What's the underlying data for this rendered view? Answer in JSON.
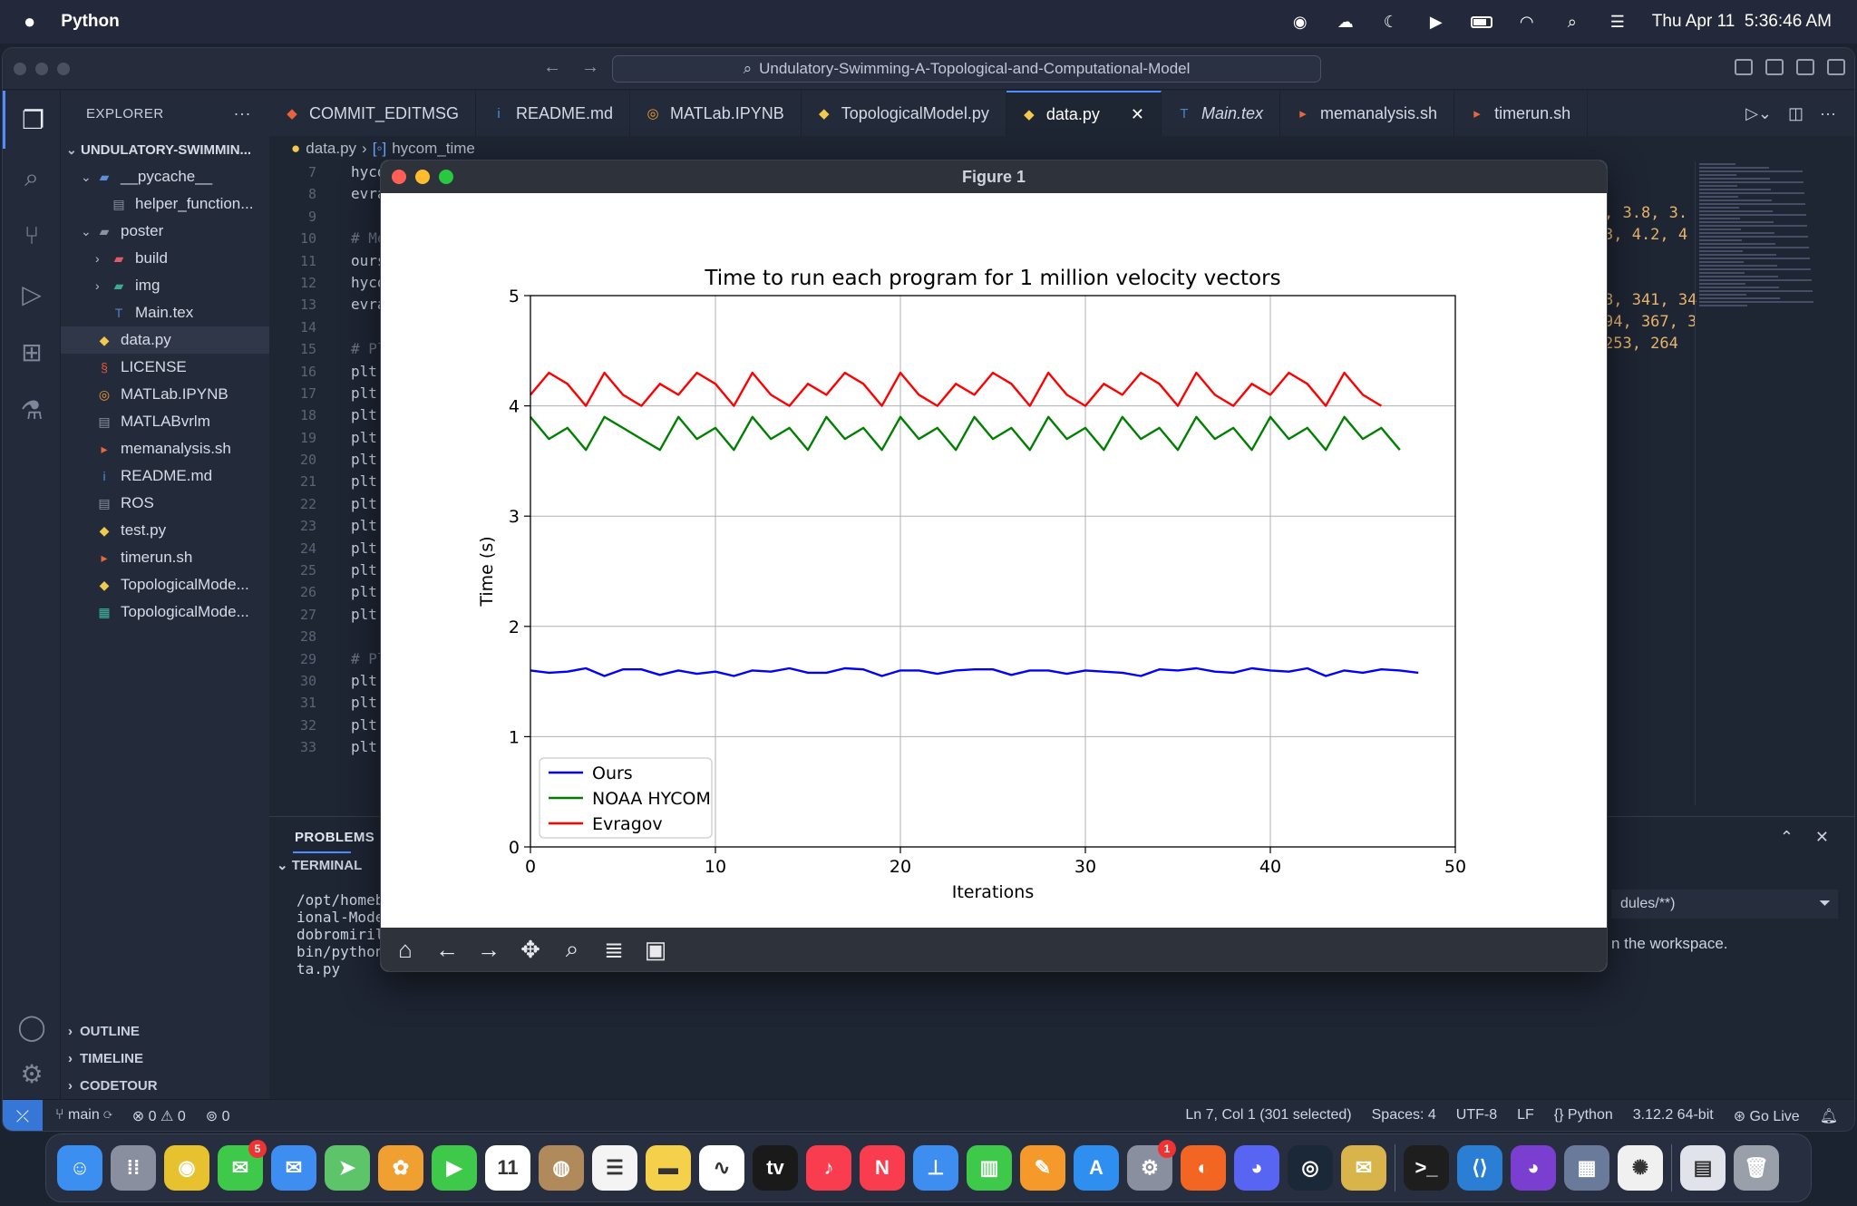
{
  "menubar": {
    "app_name": "Python",
    "datetime": "Thu Apr 11  5:36:46 AM"
  },
  "window": {
    "command_center": "Undulatory-Swimming-A-Topological-and-Computational-Model"
  },
  "explorer": {
    "title": "EXPLORER",
    "more": "···",
    "root": "UNDULATORY-SWIMMIN...",
    "items": [
      {
        "label": "__pycache__",
        "indent": 1,
        "chevron": "v",
        "icon": "folder-icon",
        "color": "#5a8fd8"
      },
      {
        "label": "helper_function...",
        "indent": 2,
        "chevron": "",
        "icon": "file-icon",
        "color": "#8a93a5"
      },
      {
        "label": "poster",
        "indent": 1,
        "chevron": "v",
        "icon": "folder-icon",
        "color": "#8a93a5"
      },
      {
        "label": "build",
        "indent": 2,
        "chevron": ">",
        "icon": "folder-icon",
        "color": "#e05a6a"
      },
      {
        "label": "img",
        "indent": 2,
        "chevron": ">",
        "icon": "folder-icon",
        "color": "#3fa98c"
      },
      {
        "label": "Main.tex",
        "indent": 2,
        "chevron": "",
        "icon": "tex-icon",
        "color": "#4f82c9"
      },
      {
        "label": "data.py",
        "indent": 1,
        "chevron": "",
        "icon": "python-icon",
        "color": "#f2c94c",
        "selected": true
      },
      {
        "label": "LICENSE",
        "indent": 1,
        "chevron": "",
        "icon": "license-icon",
        "color": "#e05a3a"
      },
      {
        "label": "MATLab.IPYNB",
        "indent": 1,
        "chevron": "",
        "icon": "jupyter-icon",
        "color": "#f29c38"
      },
      {
        "label": "MATLABvrlm",
        "indent": 1,
        "chevron": "",
        "icon": "file-icon",
        "color": "#8a93a5"
      },
      {
        "label": "memanalysis.sh",
        "indent": 1,
        "chevron": "",
        "icon": "shell-icon",
        "color": "#e56a3a"
      },
      {
        "label": "README.md",
        "indent": 1,
        "chevron": "",
        "icon": "info-icon",
        "color": "#4a8fe0"
      },
      {
        "label": "ROS",
        "indent": 1,
        "chevron": "",
        "icon": "file-icon",
        "color": "#8a93a5"
      },
      {
        "label": "test.py",
        "indent": 1,
        "chevron": "",
        "icon": "python-icon",
        "color": "#f2c94c"
      },
      {
        "label": "timerun.sh",
        "indent": 1,
        "chevron": "",
        "icon": "shell-icon",
        "color": "#e56a3a"
      },
      {
        "label": "TopologicalMode...",
        "indent": 1,
        "chevron": "",
        "icon": "python-icon",
        "color": "#f2c94c"
      },
      {
        "label": "TopologicalMode...",
        "indent": 1,
        "chevron": "",
        "icon": "notebook-icon",
        "color": "#3fb8a0"
      }
    ],
    "bottom": [
      "OUTLINE",
      "TIMELINE",
      "CODETOUR"
    ]
  },
  "tabs": [
    {
      "label": "COMMIT_EDITMSG",
      "icon": "git-icon",
      "color": "#e9643a"
    },
    {
      "label": "README.md",
      "icon": "info-icon",
      "color": "#4a8fe0"
    },
    {
      "label": "MATLab.IPYNB",
      "icon": "jupyter-icon",
      "color": "#f29c38"
    },
    {
      "label": "TopologicalModel.py",
      "icon": "python-icon",
      "color": "#f2c94c"
    },
    {
      "label": "data.py",
      "icon": "python-icon",
      "color": "#f2c94c",
      "active": true,
      "close": "✕"
    },
    {
      "label": "Main.tex",
      "icon": "tex-icon",
      "color": "#4f82c9",
      "italic": true
    },
    {
      "label": "memanalysis.sh",
      "icon": "shell-icon",
      "color": "#e56a3a"
    },
    {
      "label": "timerun.sh",
      "icon": "shell-icon",
      "color": "#e56a3a"
    }
  ],
  "breadcrumb": {
    "file": "data.py",
    "symbol": "hycom_time"
  },
  "editor": {
    "lines": [
      "7",
      "8",
      "9",
      "10",
      "11",
      "12",
      "13",
      "14",
      "15",
      "16",
      "17",
      "18",
      "19",
      "20",
      "21",
      "22",
      "23",
      "24",
      "25",
      "26",
      "27",
      "28",
      "29",
      "30",
      "31",
      "32",
      "33"
    ],
    "code": [
      "hyco",
      "evra",
      "",
      "# Me",
      "ours",
      "hyco",
      "evra",
      "",
      "# Pl",
      "plt.",
      "plt.",
      "plt.",
      "plt.",
      "plt.",
      "plt.",
      "plt.",
      "plt.",
      "plt.",
      "plt.",
      "plt.",
      "plt.",
      "",
      "# Pl",
      "plt.",
      "plt.",
      "plt.",
      "plt."
    ],
    "right_code": [
      ", 3.8, 3.",
      "3, 4.2, 4",
      "",
      "",
      "8, 341, 34",
      "94, 367, 3",
      "253, 264"
    ]
  },
  "panel": {
    "tab_problems": "PROBLEMS",
    "terminal_header": "TERMINAL",
    "terminal_lines": [
      "/opt/homeb",
      "ional-Mode",
      "dobromiril",
      "bin/python",
      "ta.py"
    ],
    "filter_text": "dules/**)",
    "message": "n the workspace."
  },
  "statusbar": {
    "branch": "main",
    "errors": "0",
    "warnings": "0",
    "ports": "0",
    "position": "Ln 7, Col 1 (301 selected)",
    "spaces": "Spaces: 4",
    "encoding": "UTF-8",
    "eol": "LF",
    "language": "Python",
    "interpreter": "3.12.2 64-bit",
    "golive": "Go Live"
  },
  "figure": {
    "window_title": "Figure 1"
  },
  "chart_data": {
    "type": "line",
    "title": "Time to run each program for 1 million velocity vectors",
    "xlabel": "Iterations",
    "ylabel": "Time (s)",
    "xlim": [
      0,
      50
    ],
    "ylim": [
      0,
      5
    ],
    "xticks": [
      0,
      10,
      20,
      30,
      40,
      50
    ],
    "yticks": [
      0,
      1,
      2,
      3,
      4,
      5
    ],
    "grid": true,
    "legend_position": "lower-left",
    "series": [
      {
        "name": "Ours",
        "color": "#0000ff",
        "x": [
          0,
          1,
          2,
          3,
          4,
          5,
          6,
          7,
          8,
          9,
          10,
          11,
          12,
          13,
          14,
          15,
          16,
          17,
          18,
          19,
          20,
          21,
          22,
          23,
          24,
          25,
          26,
          27,
          28,
          29,
          30,
          31,
          32,
          33,
          34,
          35,
          36,
          37,
          38,
          39,
          40,
          41,
          42,
          43,
          44,
          45,
          46,
          47,
          48
        ],
        "y": [
          1.6,
          1.58,
          1.59,
          1.62,
          1.55,
          1.61,
          1.61,
          1.56,
          1.6,
          1.57,
          1.59,
          1.55,
          1.6,
          1.59,
          1.62,
          1.58,
          1.58,
          1.62,
          1.61,
          1.55,
          1.6,
          1.6,
          1.57,
          1.6,
          1.61,
          1.61,
          1.56,
          1.6,
          1.6,
          1.57,
          1.6,
          1.59,
          1.58,
          1.55,
          1.61,
          1.6,
          1.62,
          1.59,
          1.58,
          1.62,
          1.6,
          1.59,
          1.62,
          1.55,
          1.6,
          1.58,
          1.61,
          1.6,
          1.58
        ]
      },
      {
        "name": "NOAA HYCOM",
        "color": "#008000",
        "x": [
          0,
          1,
          2,
          3,
          4,
          5,
          6,
          7,
          8,
          9,
          10,
          11,
          12,
          13,
          14,
          15,
          16,
          17,
          18,
          19,
          20,
          21,
          22,
          23,
          24,
          25,
          26,
          27,
          28,
          29,
          30,
          31,
          32,
          33,
          34,
          35,
          36,
          37,
          38,
          39,
          40,
          41,
          42,
          43,
          44,
          45,
          46,
          47
        ],
        "y": [
          3.9,
          3.7,
          3.8,
          3.6,
          3.9,
          3.8,
          3.7,
          3.6,
          3.9,
          3.7,
          3.8,
          3.6,
          3.9,
          3.7,
          3.8,
          3.6,
          3.9,
          3.7,
          3.8,
          3.6,
          3.9,
          3.7,
          3.8,
          3.6,
          3.9,
          3.7,
          3.8,
          3.6,
          3.9,
          3.7,
          3.8,
          3.6,
          3.9,
          3.7,
          3.8,
          3.6,
          3.9,
          3.7,
          3.8,
          3.6,
          3.9,
          3.7,
          3.8,
          3.6,
          3.9,
          3.7,
          3.8,
          3.6
        ]
      },
      {
        "name": "Evragov",
        "color": "#ff0000",
        "x": [
          0,
          1,
          2,
          3,
          4,
          5,
          6,
          7,
          8,
          9,
          10,
          11,
          12,
          13,
          14,
          15,
          16,
          17,
          18,
          19,
          20,
          21,
          22,
          23,
          24,
          25,
          26,
          27,
          28,
          29,
          30,
          31,
          32,
          33,
          34,
          35,
          36,
          37,
          38,
          39,
          40,
          41,
          42,
          43,
          44,
          45,
          46
        ],
        "y": [
          4.1,
          4.3,
          4.2,
          4.0,
          4.3,
          4.1,
          4.0,
          4.2,
          4.1,
          4.3,
          4.2,
          4.0,
          4.3,
          4.1,
          4.0,
          4.2,
          4.1,
          4.3,
          4.2,
          4.0,
          4.3,
          4.1,
          4.0,
          4.2,
          4.1,
          4.3,
          4.2,
          4.0,
          4.3,
          4.1,
          4.0,
          4.2,
          4.1,
          4.3,
          4.2,
          4.0,
          4.3,
          4.1,
          4.0,
          4.2,
          4.1,
          4.3,
          4.2,
          4.0,
          4.3,
          4.1,
          4.0
        ]
      }
    ]
  }
}
